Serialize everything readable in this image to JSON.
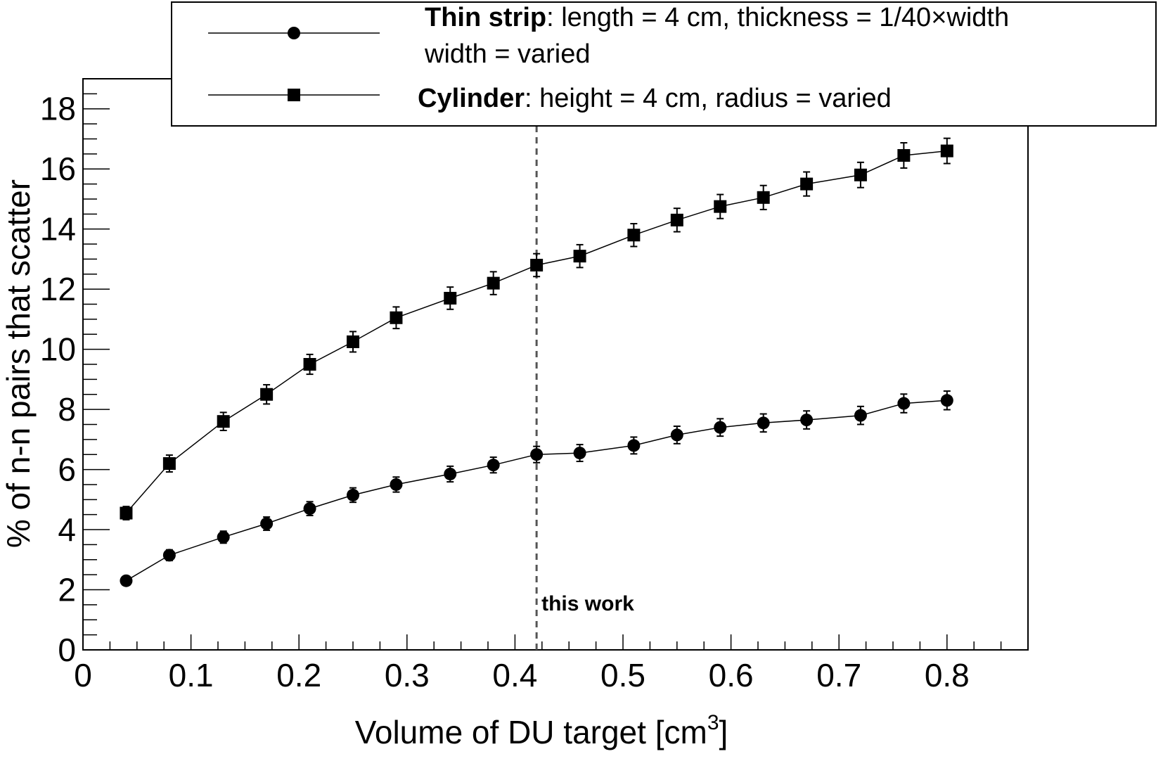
{
  "chart_data": {
    "type": "line",
    "title": "",
    "xlabel": "Volume of DU target [cm",
    "xlabel_sup": "3",
    "xlabel_end": "]",
    "ylabel": "% of n-n pairs that scatter",
    "xlim": [
      0,
      0.875
    ],
    "ylim": [
      0,
      19
    ],
    "x_ticks": [
      "0",
      "0.1",
      "0.2",
      "0.3",
      "0.4",
      "0.5",
      "0.6",
      "0.7",
      "0.8"
    ],
    "y_ticks": [
      "0",
      "2",
      "4",
      "6",
      "8",
      "10",
      "12",
      "14",
      "16",
      "18"
    ],
    "grid": false,
    "legend_position": "top",
    "annotation": {
      "text": "this work",
      "x": 0.42
    },
    "series": [
      {
        "name_bold": "Thin strip",
        "name_rest": ": length = 4 cm, thickness  = 1/40×width",
        "name_line2": "width = varied",
        "marker": "circle",
        "x": [
          0.04,
          0.08,
          0.13,
          0.17,
          0.21,
          0.25,
          0.29,
          0.34,
          0.38,
          0.42,
          0.46,
          0.51,
          0.55,
          0.59,
          0.63,
          0.67,
          0.72,
          0.76,
          0.8
        ],
        "y": [
          2.3,
          3.15,
          3.75,
          4.2,
          4.7,
          5.15,
          5.5,
          5.85,
          6.15,
          6.5,
          6.55,
          6.8,
          7.15,
          7.4,
          7.55,
          7.65,
          7.8,
          8.2,
          8.3
        ],
        "err": [
          0.12,
          0.18,
          0.2,
          0.22,
          0.23,
          0.24,
          0.25,
          0.26,
          0.26,
          0.27,
          0.28,
          0.28,
          0.29,
          0.29,
          0.3,
          0.3,
          0.3,
          0.31,
          0.31
        ]
      },
      {
        "name_bold": "Cylinder",
        "name_rest": ": height = 4 cm, radius = varied",
        "marker": "square",
        "x": [
          0.04,
          0.08,
          0.13,
          0.17,
          0.21,
          0.25,
          0.29,
          0.34,
          0.38,
          0.42,
          0.46,
          0.51,
          0.55,
          0.59,
          0.63,
          0.67,
          0.72,
          0.76,
          0.8
        ],
        "y": [
          4.55,
          6.2,
          7.6,
          8.5,
          9.5,
          10.25,
          11.05,
          11.7,
          12.2,
          12.8,
          13.1,
          13.8,
          14.3,
          14.75,
          15.05,
          15.5,
          15.8,
          16.45,
          16.6
        ],
        "err": [
          0.22,
          0.28,
          0.3,
          0.32,
          0.33,
          0.34,
          0.36,
          0.37,
          0.38,
          0.38,
          0.38,
          0.38,
          0.39,
          0.4,
          0.4,
          0.4,
          0.42,
          0.42,
          0.42
        ]
      }
    ]
  }
}
